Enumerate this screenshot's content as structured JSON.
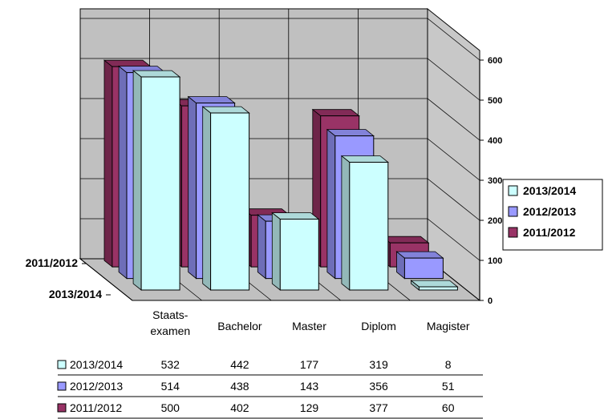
{
  "chart_data": {
    "type": "bar",
    "categories": [
      "Staats-\nexamen",
      "Bachelor",
      "Master",
      "Diplom",
      "Magister"
    ],
    "series": [
      {
        "name": "2013/2014",
        "values": [
          532,
          442,
          177,
          319,
          8
        ],
        "color": "#ccffff"
      },
      {
        "name": "2012/2013",
        "values": [
          514,
          438,
          143,
          356,
          51
        ],
        "color": "#9999ff"
      },
      {
        "name": "2011/2012",
        "values": [
          500,
          402,
          129,
          377,
          60
        ],
        "color": "#993366"
      }
    ],
    "ylim": [
      0,
      600
    ],
    "yticks": [
      0,
      100,
      200,
      300,
      400,
      500,
      600
    ],
    "depth_axis_labels": [
      "2011/2012",
      "2013/2014"
    ],
    "grid": true,
    "legend_position": "right",
    "data_table": true
  }
}
